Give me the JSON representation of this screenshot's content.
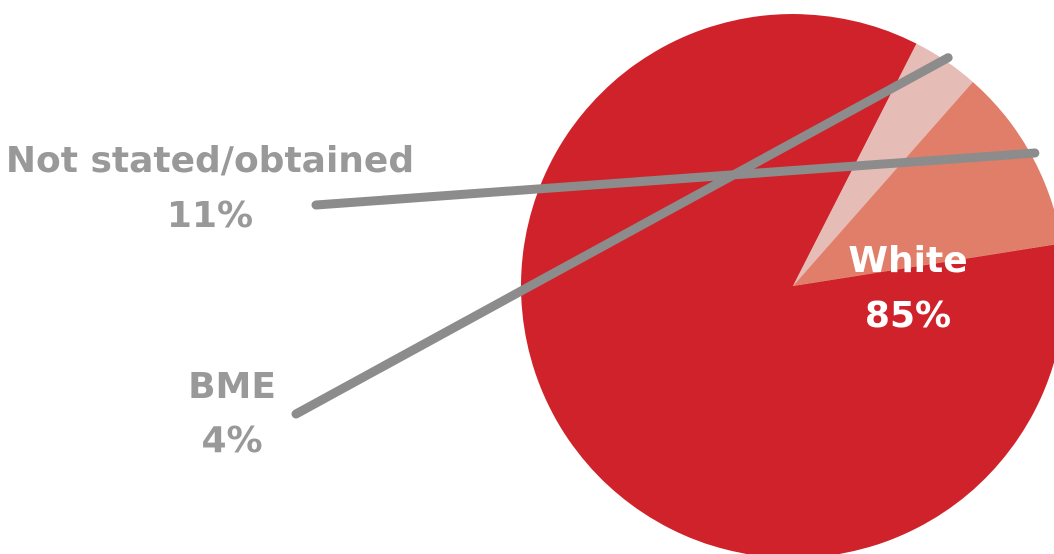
{
  "chart_data": {
    "type": "pie",
    "title": "",
    "slices": [
      {
        "label": "White",
        "value": 85,
        "value_label": "85%",
        "color": "#d0222b",
        "label_color": "#ffffff"
      },
      {
        "label": "Not stated/obtained",
        "value": 11,
        "value_label": "11%",
        "color": "#e07e69",
        "label_color": "#999999"
      },
      {
        "label": "BME",
        "value": 4,
        "value_label": "4%",
        "color": "#e6bcb6",
        "label_color": "#999999"
      }
    ],
    "legend": "none",
    "leader_line_color": "#8c8c8c"
  }
}
